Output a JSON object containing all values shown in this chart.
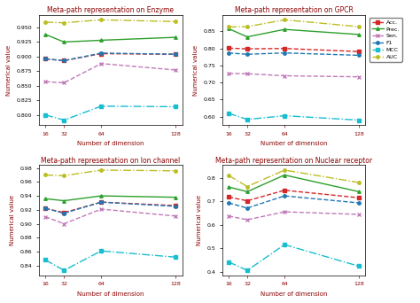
{
  "x": [
    16,
    32,
    64,
    128
  ],
  "titles": [
    "Meta-path representation on Enzyme",
    "Meta-path representation on GPCR",
    "Meta-path representation on Ion channel",
    "Meta-path representation on Nuclear receptor"
  ],
  "xlabel": "Number of dimension",
  "ylabel": "Numerical value",
  "enzyme": {
    "Acc": [
      0.896,
      0.893,
      0.905,
      0.904
    ],
    "Prec": [
      0.938,
      0.925,
      0.928,
      0.933
    ],
    "Sen": [
      0.857,
      0.855,
      0.888,
      0.877
    ],
    "F1": [
      0.896,
      0.893,
      0.906,
      0.904
    ],
    "MCC": [
      0.8,
      0.791,
      0.815,
      0.814
    ],
    "AUC": [
      0.959,
      0.958,
      0.963,
      0.96
    ]
  },
  "gpcr": {
    "Acc": [
      0.801,
      0.799,
      0.8,
      0.791
    ],
    "Prec": [
      0.858,
      0.834,
      0.856,
      0.841
    ],
    "Sen": [
      0.727,
      0.726,
      0.72,
      0.717
    ],
    "F1": [
      0.787,
      0.783,
      0.787,
      0.78
    ],
    "MCC": [
      0.61,
      0.592,
      0.603,
      0.59
    ],
    "AUC": [
      0.863,
      0.864,
      0.884,
      0.864
    ]
  },
  "ion": {
    "Acc": [
      0.922,
      0.916,
      0.931,
      0.926
    ],
    "Prec": [
      0.936,
      0.933,
      0.94,
      0.938
    ],
    "Sen": [
      0.91,
      0.9,
      0.921,
      0.911
    ],
    "F1": [
      0.922,
      0.915,
      0.931,
      0.925
    ],
    "MCC": [
      0.848,
      0.833,
      0.861,
      0.852
    ],
    "AUC": [
      0.97,
      0.969,
      0.977,
      0.976
    ]
  },
  "nuclear": {
    "Acc": [
      0.719,
      0.703,
      0.748,
      0.716
    ],
    "Prec": [
      0.762,
      0.742,
      0.813,
      0.742
    ],
    "Sen": [
      0.638,
      0.622,
      0.656,
      0.645
    ],
    "F1": [
      0.694,
      0.672,
      0.724,
      0.694
    ],
    "MCC": [
      0.442,
      0.406,
      0.516,
      0.424
    ],
    "AUC": [
      0.811,
      0.764,
      0.834,
      0.781
    ]
  },
  "colors": {
    "Acc": "#d62728",
    "Prec": "#2ca02c",
    "Sen": "#c07ab8",
    "F1": "#1f77b4",
    "MCC": "#17becf",
    "AUC": "#bcbd22"
  },
  "linestyles": {
    "Acc": "--",
    "Prec": "-",
    "Sen": "--",
    "F1": "--",
    "MCC": "-.",
    "AUC": "-."
  },
  "markers": {
    "Acc": "s",
    "Prec": "^",
    "Sen": "x",
    "F1": "o",
    "MCC": "s",
    "AUC": "o"
  },
  "legend_labels": [
    "Acc.",
    "Prec.",
    "Sen.",
    "F1",
    "MCC",
    "AUC"
  ]
}
